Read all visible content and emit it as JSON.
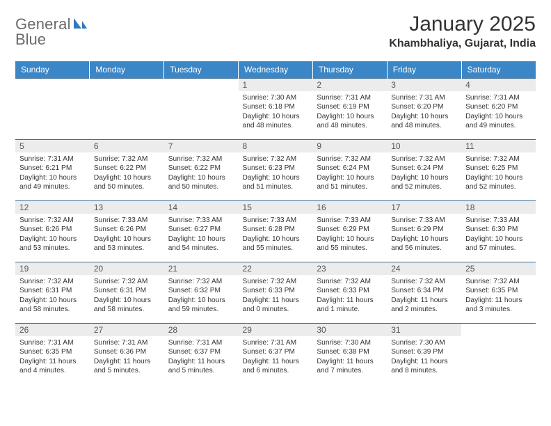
{
  "logo": {
    "word1": "General",
    "word2": "Blue",
    "accent_color": "#2f79bd",
    "text_color": "#6a6a6a"
  },
  "title": "January 2025",
  "location": "Khambhaliya, Gujarat, India",
  "header_bg": "#3b86c6",
  "days_of_week": [
    "Sunday",
    "Monday",
    "Tuesday",
    "Wednesday",
    "Thursday",
    "Friday",
    "Saturday"
  ],
  "weeks": [
    [
      null,
      null,
      null,
      {
        "n": "1",
        "sr": "7:30 AM",
        "ss": "6:18 PM",
        "dl": "10 hours and 48 minutes."
      },
      {
        "n": "2",
        "sr": "7:31 AM",
        "ss": "6:19 PM",
        "dl": "10 hours and 48 minutes."
      },
      {
        "n": "3",
        "sr": "7:31 AM",
        "ss": "6:20 PM",
        "dl": "10 hours and 48 minutes."
      },
      {
        "n": "4",
        "sr": "7:31 AM",
        "ss": "6:20 PM",
        "dl": "10 hours and 49 minutes."
      }
    ],
    [
      {
        "n": "5",
        "sr": "7:31 AM",
        "ss": "6:21 PM",
        "dl": "10 hours and 49 minutes."
      },
      {
        "n": "6",
        "sr": "7:32 AM",
        "ss": "6:22 PM",
        "dl": "10 hours and 50 minutes."
      },
      {
        "n": "7",
        "sr": "7:32 AM",
        "ss": "6:22 PM",
        "dl": "10 hours and 50 minutes."
      },
      {
        "n": "8",
        "sr": "7:32 AM",
        "ss": "6:23 PM",
        "dl": "10 hours and 51 minutes."
      },
      {
        "n": "9",
        "sr": "7:32 AM",
        "ss": "6:24 PM",
        "dl": "10 hours and 51 minutes."
      },
      {
        "n": "10",
        "sr": "7:32 AM",
        "ss": "6:24 PM",
        "dl": "10 hours and 52 minutes."
      },
      {
        "n": "11",
        "sr": "7:32 AM",
        "ss": "6:25 PM",
        "dl": "10 hours and 52 minutes."
      }
    ],
    [
      {
        "n": "12",
        "sr": "7:32 AM",
        "ss": "6:26 PM",
        "dl": "10 hours and 53 minutes."
      },
      {
        "n": "13",
        "sr": "7:33 AM",
        "ss": "6:26 PM",
        "dl": "10 hours and 53 minutes."
      },
      {
        "n": "14",
        "sr": "7:33 AM",
        "ss": "6:27 PM",
        "dl": "10 hours and 54 minutes."
      },
      {
        "n": "15",
        "sr": "7:33 AM",
        "ss": "6:28 PM",
        "dl": "10 hours and 55 minutes."
      },
      {
        "n": "16",
        "sr": "7:33 AM",
        "ss": "6:29 PM",
        "dl": "10 hours and 55 minutes."
      },
      {
        "n": "17",
        "sr": "7:33 AM",
        "ss": "6:29 PM",
        "dl": "10 hours and 56 minutes."
      },
      {
        "n": "18",
        "sr": "7:33 AM",
        "ss": "6:30 PM",
        "dl": "10 hours and 57 minutes."
      }
    ],
    [
      {
        "n": "19",
        "sr": "7:32 AM",
        "ss": "6:31 PM",
        "dl": "10 hours and 58 minutes."
      },
      {
        "n": "20",
        "sr": "7:32 AM",
        "ss": "6:31 PM",
        "dl": "10 hours and 58 minutes."
      },
      {
        "n": "21",
        "sr": "7:32 AM",
        "ss": "6:32 PM",
        "dl": "10 hours and 59 minutes."
      },
      {
        "n": "22",
        "sr": "7:32 AM",
        "ss": "6:33 PM",
        "dl": "11 hours and 0 minutes."
      },
      {
        "n": "23",
        "sr": "7:32 AM",
        "ss": "6:33 PM",
        "dl": "11 hours and 1 minute."
      },
      {
        "n": "24",
        "sr": "7:32 AM",
        "ss": "6:34 PM",
        "dl": "11 hours and 2 minutes."
      },
      {
        "n": "25",
        "sr": "7:32 AM",
        "ss": "6:35 PM",
        "dl": "11 hours and 3 minutes."
      }
    ],
    [
      {
        "n": "26",
        "sr": "7:31 AM",
        "ss": "6:35 PM",
        "dl": "11 hours and 4 minutes."
      },
      {
        "n": "27",
        "sr": "7:31 AM",
        "ss": "6:36 PM",
        "dl": "11 hours and 5 minutes."
      },
      {
        "n": "28",
        "sr": "7:31 AM",
        "ss": "6:37 PM",
        "dl": "11 hours and 5 minutes."
      },
      {
        "n": "29",
        "sr": "7:31 AM",
        "ss": "6:37 PM",
        "dl": "11 hours and 6 minutes."
      },
      {
        "n": "30",
        "sr": "7:30 AM",
        "ss": "6:38 PM",
        "dl": "11 hours and 7 minutes."
      },
      {
        "n": "31",
        "sr": "7:30 AM",
        "ss": "6:39 PM",
        "dl": "11 hours and 8 minutes."
      },
      null
    ]
  ],
  "labels": {
    "sunrise": "Sunrise: ",
    "sunset": "Sunset: ",
    "daylight": "Daylight: "
  }
}
